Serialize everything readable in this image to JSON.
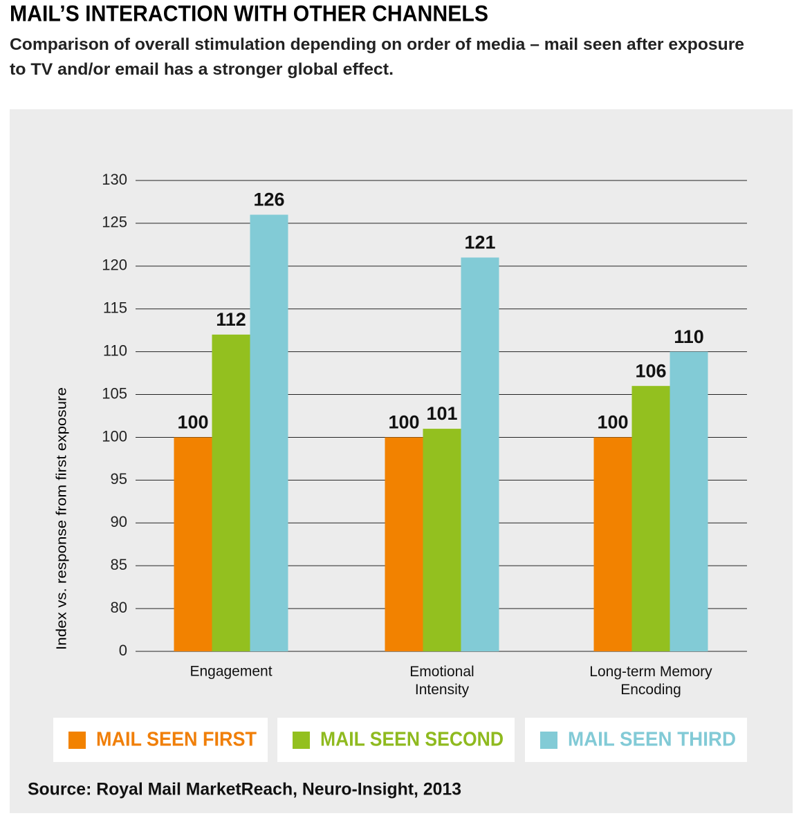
{
  "chart_data": {
    "type": "bar",
    "title": "MAIL’S INTERACTION WITH OTHER CHANNELS",
    "subtitle": "Comparison of overall stimulation depending on order of media – mail seen after exposure\nto TV and/or email has a stronger global effect.",
    "y_axis_label": "Index vs. response from first exposure",
    "source": "Source: Royal Mail MarketReach, Neuro-Insight, 2013",
    "categories": [
      "Engagement",
      "Emotional\nIntensity",
      "Long-term Memory\nEncoding"
    ],
    "series": [
      {
        "name": "MAIL SEEN FIRST",
        "color": "#f28200",
        "text_color": "#f07f09",
        "values": [
          100,
          100,
          100
        ]
      },
      {
        "name": "MAIL SEEN SECOND",
        "color": "#93c01f",
        "text_color": "#8fba1f",
        "values": [
          112,
          101,
          106
        ]
      },
      {
        "name": "MAIL SEEN THIRD",
        "color": "#82cbd6",
        "text_color": "#82cad6",
        "values": [
          126,
          121,
          110
        ]
      }
    ],
    "ylim": [
      0,
      130
    ],
    "axis_break": [
      0,
      80
    ],
    "yticks": [
      0,
      80,
      85,
      90,
      95,
      100,
      105,
      110,
      115,
      120,
      125,
      130
    ],
    "grid": true,
    "legend": "bottom"
  }
}
